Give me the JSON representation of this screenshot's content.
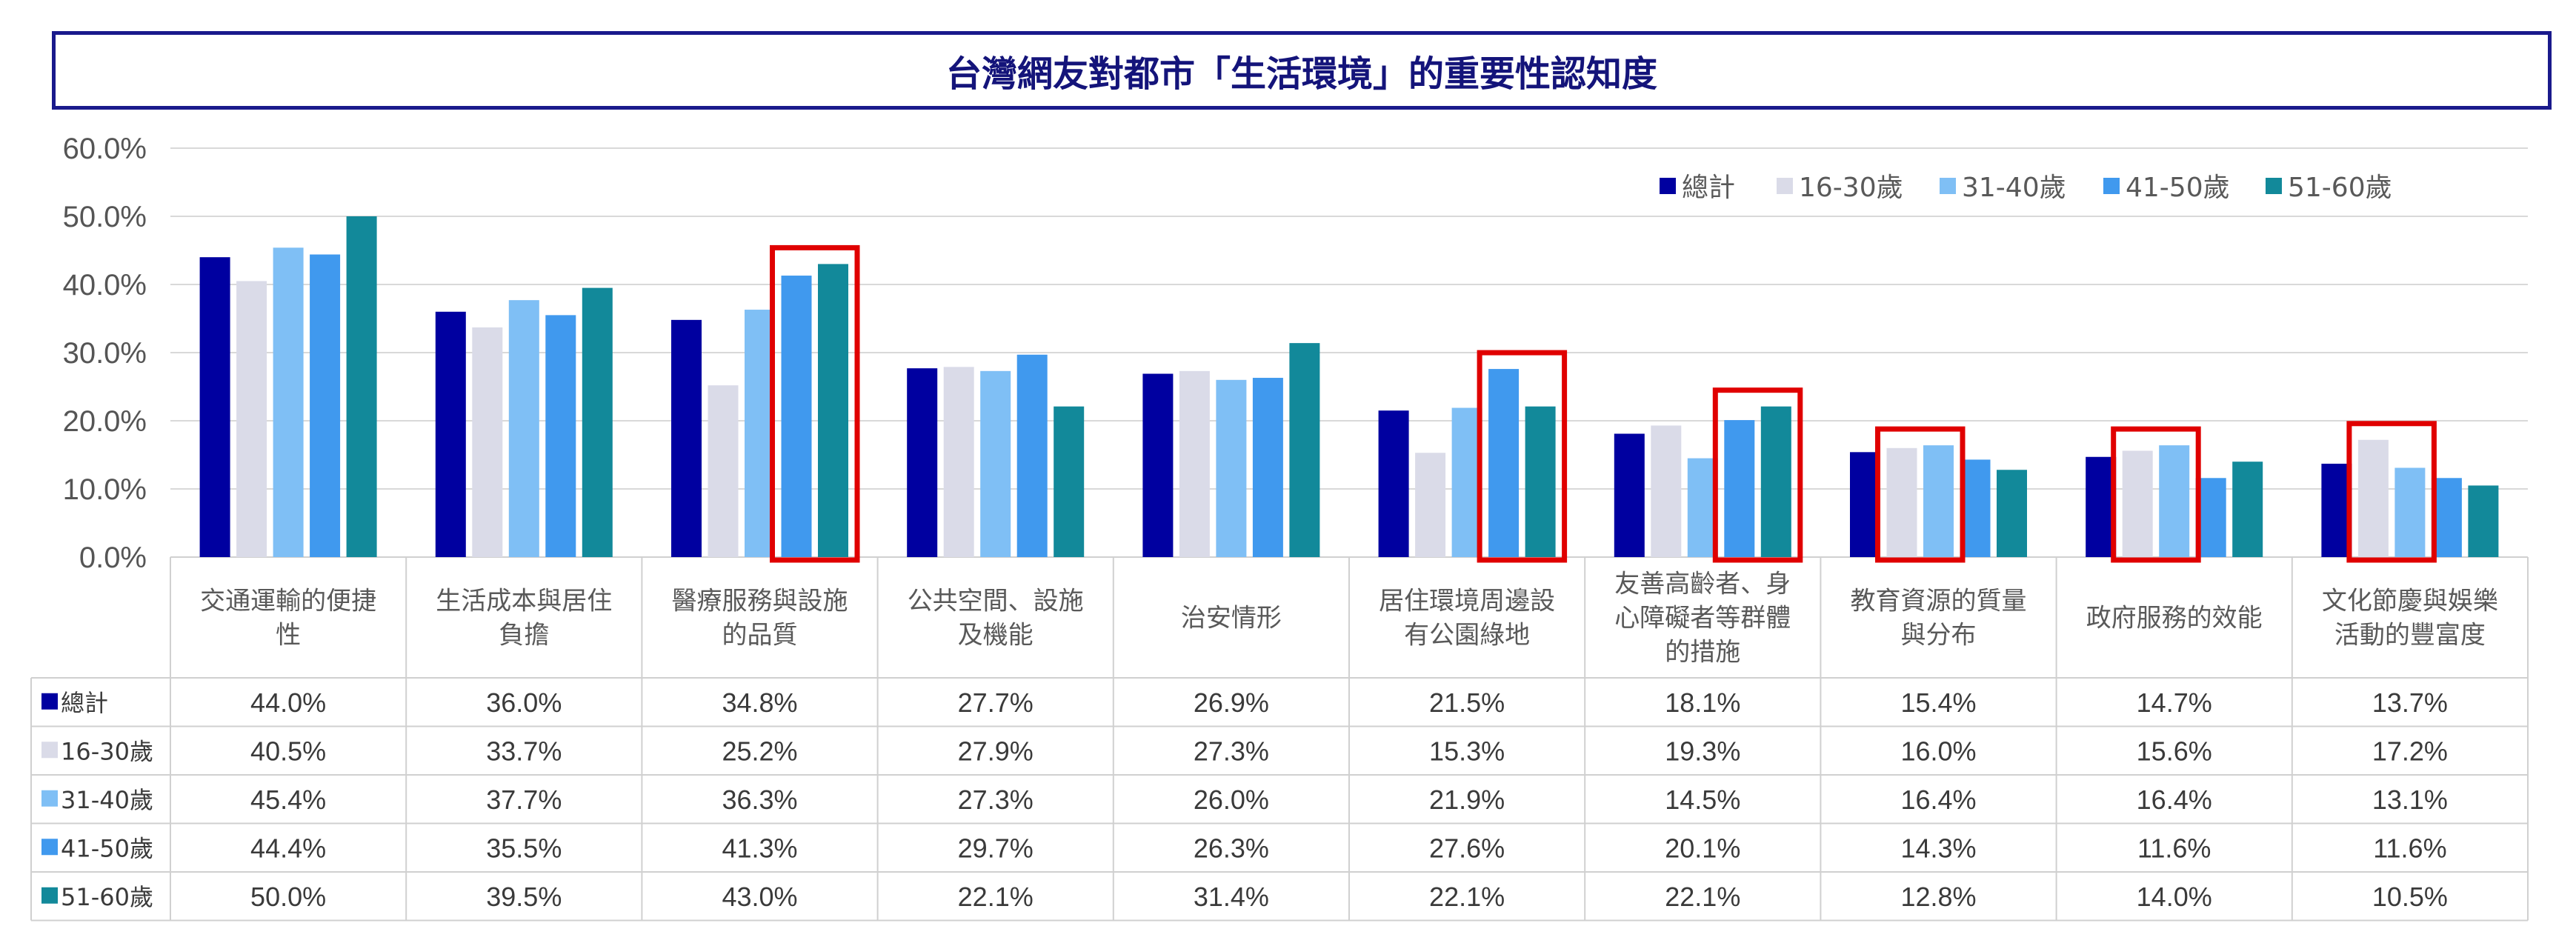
{
  "title": "台灣網友對都市「生活環境」的重要性認知度",
  "colors": {
    "series": [
      "#0000a0",
      "#dadbe8",
      "#7fbff5",
      "#4099ee",
      "#12899a"
    ],
    "highlight": "#e00000",
    "title_border": "#1a1a8c"
  },
  "chart_data": {
    "type": "bar",
    "title": "台灣網友對都市「生活環境」的重要性認知度",
    "ylim": [
      0,
      60
    ],
    "yticks": [
      "0.0%",
      "10.0%",
      "20.0%",
      "30.0%",
      "40.0%",
      "50.0%",
      "60.0%"
    ],
    "grid": true,
    "legend_position": "top-right",
    "categories": [
      [
        "交通運輸的便捷",
        "性"
      ],
      [
        "生活成本與居住",
        "負擔"
      ],
      [
        "醫療服務與設施",
        "的品質"
      ],
      [
        "公共空間、設施",
        "及機能"
      ],
      [
        "治安情形"
      ],
      [
        "居住環境周邊設",
        "有公園綠地"
      ],
      [
        "友善高齡者、身",
        "心障礙者等群體",
        "的措施"
      ],
      [
        "教育資源的質量",
        "與分布"
      ],
      [
        "政府服務的效能"
      ],
      [
        "文化節慶與娛樂",
        "活動的豐富度"
      ]
    ],
    "series": [
      {
        "name": "總計",
        "values": [
          44.0,
          36.0,
          34.8,
          27.7,
          26.9,
          21.5,
          18.1,
          15.4,
          14.7,
          13.7
        ],
        "labels": [
          "44.0%",
          "36.0%",
          "34.8%",
          "27.7%",
          "26.9%",
          "21.5%",
          "18.1%",
          "15.4%",
          "14.7%",
          "13.7%"
        ]
      },
      {
        "name": "16-30歲",
        "values": [
          40.5,
          33.7,
          25.2,
          27.9,
          27.3,
          15.3,
          19.3,
          16.0,
          15.6,
          17.2
        ],
        "labels": [
          "40.5%",
          "33.7%",
          "25.2%",
          "27.9%",
          "27.3%",
          "15.3%",
          "19.3%",
          "16.0%",
          "15.6%",
          "17.2%"
        ]
      },
      {
        "name": "31-40歲",
        "values": [
          45.4,
          37.7,
          36.3,
          27.3,
          26.0,
          21.9,
          14.5,
          16.4,
          16.4,
          13.1
        ],
        "labels": [
          "45.4%",
          "37.7%",
          "36.3%",
          "27.3%",
          "26.0%",
          "21.9%",
          "14.5%",
          "16.4%",
          "16.4%",
          "13.1%"
        ]
      },
      {
        "name": "41-50歲",
        "values": [
          44.4,
          35.5,
          41.3,
          29.7,
          26.3,
          27.6,
          20.1,
          14.3,
          11.6,
          11.6
        ],
        "labels": [
          "44.4%",
          "35.5%",
          "41.3%",
          "29.7%",
          "26.3%",
          "27.6%",
          "20.1%",
          "14.3%",
          "11.6%",
          "11.6%"
        ]
      },
      {
        "name": "51-60歲",
        "values": [
          50.0,
          39.5,
          43.0,
          22.1,
          31.4,
          22.1,
          22.1,
          12.8,
          14.0,
          10.5
        ],
        "labels": [
          "50.0%",
          "39.5%",
          "43.0%",
          "22.1%",
          "31.4%",
          "22.1%",
          "22.1%",
          "12.8%",
          "14.0%",
          "10.5%"
        ]
      }
    ],
    "highlights": [
      {
        "category": 2,
        "series": [
          3,
          4
        ]
      },
      {
        "category": 5,
        "series": [
          3,
          4
        ]
      },
      {
        "category": 6,
        "series": [
          3,
          4
        ]
      },
      {
        "category": 7,
        "series": [
          1,
          2
        ]
      },
      {
        "category": 8,
        "series": [
          1,
          2
        ]
      },
      {
        "category": 9,
        "series": [
          1,
          2
        ]
      }
    ]
  }
}
